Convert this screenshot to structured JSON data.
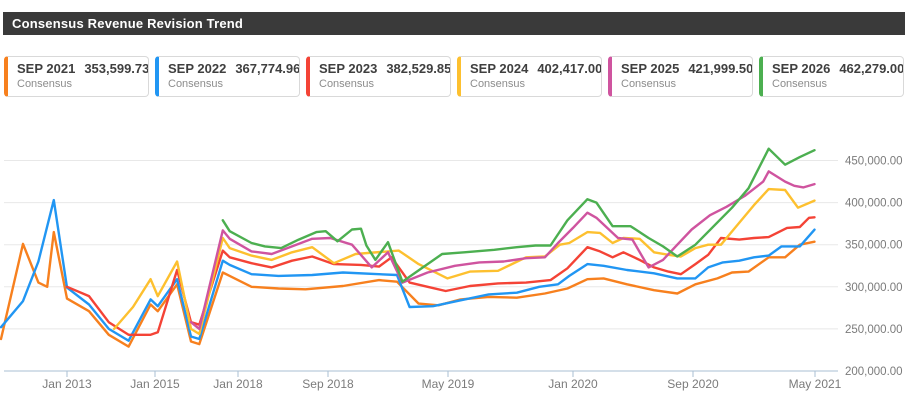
{
  "header": {
    "title": "Consensus Revenue Revision Trend"
  },
  "cards": [
    {
      "period": "SEP 2021",
      "value": "353,599.73",
      "label": "Consensus",
      "color": "#f7801e"
    },
    {
      "period": "SEP 2022",
      "value": "367,774.96",
      "label": "Consensus",
      "color": "#2196f3"
    },
    {
      "period": "SEP 2023",
      "value": "382,529.85",
      "label": "Consensus",
      "color": "#f44336"
    },
    {
      "period": "SEP 2024",
      "value": "402,417.00",
      "label": "Consensus",
      "color": "#fdc02f"
    },
    {
      "period": "SEP 2025",
      "value": "421,999.50",
      "label": "Consensus",
      "color": "#cf549f"
    },
    {
      "period": "SEP 2026",
      "value": "462,279.00",
      "label": "Consensus",
      "color": "#4caf50"
    }
  ],
  "chart_data": {
    "type": "line",
    "title": "Consensus Revenue Revision Trend",
    "xlabel": "",
    "ylabel": "",
    "grid": true,
    "legend_position": "top-cards",
    "ylim": [
      200000,
      480000
    ],
    "x_axis": {
      "ticks": [
        {
          "t": 2013.0,
          "label": "Jan 2013"
        },
        {
          "t": 2015.0,
          "label": "Jan 2015"
        },
        {
          "t": 2018.0,
          "label": "Jan 2018"
        },
        {
          "t": 2018.667,
          "label": "Sep 2018"
        },
        {
          "t": 2019.333,
          "label": "May 2019"
        },
        {
          "t": 2020.0,
          "label": "Jan 2020"
        },
        {
          "t": 2020.667,
          "label": "Sep 2020"
        },
        {
          "t": 2021.333,
          "label": "May 2021"
        }
      ]
    },
    "y_axis": {
      "ticks": [
        {
          "v": 450000,
          "label": "450,000.00"
        },
        {
          "v": 400000,
          "label": "400,000.00"
        },
        {
          "v": 350000,
          "label": "350,000.00"
        },
        {
          "v": 300000,
          "label": "300,000.00"
        },
        {
          "v": 250000,
          "label": "250,000.00"
        },
        {
          "v": 200000,
          "label": "200,000.00"
        }
      ]
    },
    "series": [
      {
        "name": "SEP 2021 Consensus",
        "color": "#f7801e",
        "points": [
          [
            2011.5,
            238000
          ],
          [
            2012.0,
            351000
          ],
          [
            2012.35,
            305000
          ],
          [
            2012.55,
            300000
          ],
          [
            2012.7,
            365000
          ],
          [
            2013.0,
            286000
          ],
          [
            2013.5,
            271000
          ],
          [
            2013.95,
            243000
          ],
          [
            2014.4,
            229000
          ],
          [
            2014.9,
            279000
          ],
          [
            2015.1,
            271000
          ],
          [
            2015.8,
            303000
          ],
          [
            2016.3,
            235000
          ],
          [
            2016.6,
            232000
          ],
          [
            2017.45,
            317000
          ],
          [
            2017.7,
            313000
          ],
          [
            2018.1,
            300000
          ],
          [
            2018.3,
            298000
          ],
          [
            2018.5,
            297000
          ],
          [
            2018.75,
            301000
          ],
          [
            2018.95,
            308000
          ],
          [
            2019.05,
            306000
          ],
          [
            2019.17,
            280000
          ],
          [
            2019.28,
            278000
          ],
          [
            2019.4,
            285000
          ],
          [
            2019.55,
            288000
          ],
          [
            2019.7,
            287000
          ],
          [
            2019.85,
            292000
          ],
          [
            2019.97,
            298000
          ],
          [
            2020.08,
            309000
          ],
          [
            2020.17,
            310000
          ],
          [
            2020.3,
            303000
          ],
          [
            2020.45,
            296000
          ],
          [
            2020.58,
            292000
          ],
          [
            2020.68,
            303000
          ],
          [
            2020.8,
            310000
          ],
          [
            2020.88,
            317000
          ],
          [
            2020.97,
            318000
          ],
          [
            2021.08,
            335000
          ],
          [
            2021.17,
            335000
          ],
          [
            2021.25,
            350000
          ],
          [
            2021.33,
            353599.73
          ]
        ]
      },
      {
        "name": "SEP 2022 Consensus",
        "color": "#2196f3",
        "points": [
          [
            2011.5,
            252000
          ],
          [
            2012.0,
            283000
          ],
          [
            2012.35,
            330000
          ],
          [
            2012.7,
            403000
          ],
          [
            2013.0,
            299000
          ],
          [
            2013.5,
            279000
          ],
          [
            2013.95,
            250000
          ],
          [
            2014.4,
            236000
          ],
          [
            2014.9,
            285000
          ],
          [
            2015.1,
            277000
          ],
          [
            2015.8,
            309000
          ],
          [
            2016.3,
            241000
          ],
          [
            2016.6,
            238000
          ],
          [
            2017.45,
            331000
          ],
          [
            2017.7,
            326000
          ],
          [
            2018.1,
            315000
          ],
          [
            2018.3,
            313000
          ],
          [
            2018.55,
            314000
          ],
          [
            2018.75,
            317000
          ],
          [
            2018.95,
            315000
          ],
          [
            2019.05,
            314000
          ],
          [
            2019.12,
            276000
          ],
          [
            2019.25,
            277000
          ],
          [
            2019.4,
            284000
          ],
          [
            2019.55,
            291000
          ],
          [
            2019.7,
            293000
          ],
          [
            2019.82,
            300000
          ],
          [
            2019.92,
            303000
          ],
          [
            2019.98,
            313000
          ],
          [
            2020.08,
            327000
          ],
          [
            2020.17,
            325000
          ],
          [
            2020.3,
            320000
          ],
          [
            2020.45,
            316000
          ],
          [
            2020.58,
            310000
          ],
          [
            2020.68,
            310000
          ],
          [
            2020.75,
            323000
          ],
          [
            2020.83,
            329000
          ],
          [
            2020.92,
            331000
          ],
          [
            2021.0,
            335000
          ],
          [
            2021.08,
            337000
          ],
          [
            2021.15,
            348000
          ],
          [
            2021.25,
            348000
          ],
          [
            2021.33,
            367774.96
          ]
        ]
      },
      {
        "name": "SEP 2023 Consensus",
        "color": "#f44336",
        "points": [
          [
            2013.0,
            300000
          ],
          [
            2013.5,
            289000
          ],
          [
            2013.95,
            258000
          ],
          [
            2014.4,
            243000
          ],
          [
            2014.9,
            243000
          ],
          [
            2015.1,
            246000
          ],
          [
            2015.8,
            320000
          ],
          [
            2016.3,
            258000
          ],
          [
            2016.6,
            255000
          ],
          [
            2017.45,
            343000
          ],
          [
            2017.7,
            335000
          ],
          [
            2018.1,
            328000
          ],
          [
            2018.25,
            323000
          ],
          [
            2018.4,
            331000
          ],
          [
            2018.55,
            336000
          ],
          [
            2018.7,
            327000
          ],
          [
            2018.85,
            326000
          ],
          [
            2018.95,
            324000
          ],
          [
            2019.02,
            335000
          ],
          [
            2019.12,
            305000
          ],
          [
            2019.22,
            300000
          ],
          [
            2019.32,
            295000
          ],
          [
            2019.45,
            301000
          ],
          [
            2019.6,
            304000
          ],
          [
            2019.75,
            305000
          ],
          [
            2019.88,
            308000
          ],
          [
            2019.97,
            322000
          ],
          [
            2020.08,
            347000
          ],
          [
            2020.15,
            342000
          ],
          [
            2020.22,
            335000
          ],
          [
            2020.28,
            341000
          ],
          [
            2020.37,
            332000
          ],
          [
            2020.45,
            323000
          ],
          [
            2020.53,
            318000
          ],
          [
            2020.6,
            315000
          ],
          [
            2020.68,
            327000
          ],
          [
            2020.75,
            338000
          ],
          [
            2020.82,
            358000
          ],
          [
            2020.92,
            356000
          ],
          [
            2021.0,
            358000
          ],
          [
            2021.08,
            359000
          ],
          [
            2021.18,
            370000
          ],
          [
            2021.25,
            371000
          ],
          [
            2021.3,
            382000
          ],
          [
            2021.33,
            382529.85
          ]
        ]
      },
      {
        "name": "SEP 2024 Consensus",
        "color": "#fdc02f",
        "points": [
          [
            2014.07,
            250000
          ],
          [
            2014.5,
            276000
          ],
          [
            2014.9,
            309000
          ],
          [
            2015.1,
            289000
          ],
          [
            2015.8,
            330000
          ],
          [
            2016.3,
            250000
          ],
          [
            2016.6,
            244000
          ],
          [
            2017.45,
            358000
          ],
          [
            2017.7,
            346000
          ],
          [
            2018.1,
            337000
          ],
          [
            2018.25,
            332000
          ],
          [
            2018.4,
            341000
          ],
          [
            2018.55,
            347000
          ],
          [
            2018.7,
            328000
          ],
          [
            2018.82,
            339000
          ],
          [
            2019.0,
            342000
          ],
          [
            2019.06,
            343000
          ],
          [
            2019.17,
            327000
          ],
          [
            2019.33,
            310000
          ],
          [
            2019.45,
            318000
          ],
          [
            2019.6,
            319000
          ],
          [
            2019.75,
            335000
          ],
          [
            2019.85,
            336000
          ],
          [
            2019.93,
            350000
          ],
          [
            2019.98,
            352000
          ],
          [
            2020.08,
            365000
          ],
          [
            2020.15,
            364000
          ],
          [
            2020.22,
            352000
          ],
          [
            2020.28,
            358000
          ],
          [
            2020.37,
            357000
          ],
          [
            2020.45,
            341000
          ],
          [
            2020.53,
            338000
          ],
          [
            2020.6,
            336000
          ],
          [
            2020.68,
            346000
          ],
          [
            2020.75,
            350000
          ],
          [
            2020.82,
            350000
          ],
          [
            2020.9,
            371000
          ],
          [
            2021.0,
            397000
          ],
          [
            2021.08,
            416000
          ],
          [
            2021.17,
            415000
          ],
          [
            2021.24,
            394000
          ],
          [
            2021.33,
            402417.0
          ]
        ]
      },
      {
        "name": "SEP 2025 Consensus",
        "color": "#cf549f",
        "points": [
          [
            2016.3,
            258000
          ],
          [
            2016.6,
            250000
          ],
          [
            2017.45,
            367000
          ],
          [
            2017.7,
            357000
          ],
          [
            2018.1,
            342000
          ],
          [
            2018.25,
            339000
          ],
          [
            2018.4,
            348000
          ],
          [
            2018.55,
            357000
          ],
          [
            2018.68,
            358000
          ],
          [
            2018.8,
            350000
          ],
          [
            2018.91,
            323000
          ],
          [
            2019.0,
            341000
          ],
          [
            2019.08,
            305000
          ],
          [
            2019.22,
            317000
          ],
          [
            2019.37,
            325000
          ],
          [
            2019.5,
            329000
          ],
          [
            2019.63,
            330000
          ],
          [
            2019.75,
            334000
          ],
          [
            2019.85,
            335000
          ],
          [
            2019.92,
            352000
          ],
          [
            2020.0,
            370000
          ],
          [
            2020.08,
            388000
          ],
          [
            2020.13,
            382000
          ],
          [
            2020.25,
            358000
          ],
          [
            2020.33,
            356000
          ],
          [
            2020.42,
            323000
          ],
          [
            2020.5,
            332000
          ],
          [
            2020.58,
            350000
          ],
          [
            2020.66,
            368000
          ],
          [
            2020.76,
            385000
          ],
          [
            2020.85,
            395000
          ],
          [
            2020.95,
            408000
          ],
          [
            2021.05,
            425000
          ],
          [
            2021.08,
            437000
          ],
          [
            2021.17,
            425000
          ],
          [
            2021.22,
            420000
          ],
          [
            2021.27,
            418000
          ],
          [
            2021.33,
            421999.5
          ]
        ]
      },
      {
        "name": "SEP 2026 Consensus",
        "color": "#4caf50",
        "points": [
          [
            2017.45,
            379000
          ],
          [
            2017.7,
            366000
          ],
          [
            2018.1,
            352000
          ],
          [
            2018.2,
            348000
          ],
          [
            2018.32,
            346000
          ],
          [
            2018.45,
            356000
          ],
          [
            2018.58,
            365000
          ],
          [
            2018.65,
            366000
          ],
          [
            2018.72,
            354000
          ],
          [
            2018.8,
            368000
          ],
          [
            2018.85,
            369000
          ],
          [
            2018.88,
            349000
          ],
          [
            2018.93,
            332000
          ],
          [
            2019.0,
            353000
          ],
          [
            2019.08,
            306000
          ],
          [
            2019.18,
            321000
          ],
          [
            2019.3,
            339000
          ],
          [
            2019.42,
            341000
          ],
          [
            2019.58,
            344000
          ],
          [
            2019.7,
            347000
          ],
          [
            2019.8,
            349000
          ],
          [
            2019.88,
            349000
          ],
          [
            2019.97,
            379000
          ],
          [
            2020.08,
            404000
          ],
          [
            2020.13,
            400000
          ],
          [
            2020.22,
            372000
          ],
          [
            2020.32,
            372000
          ],
          [
            2020.42,
            358000
          ],
          [
            2020.5,
            348000
          ],
          [
            2020.58,
            336000
          ],
          [
            2020.68,
            350000
          ],
          [
            2020.78,
            372000
          ],
          [
            2020.88,
            394000
          ],
          [
            2020.97,
            417000
          ],
          [
            2021.08,
            464000
          ],
          [
            2021.17,
            445000
          ],
          [
            2021.25,
            454000
          ],
          [
            2021.33,
            462279.0
          ]
        ]
      }
    ]
  }
}
